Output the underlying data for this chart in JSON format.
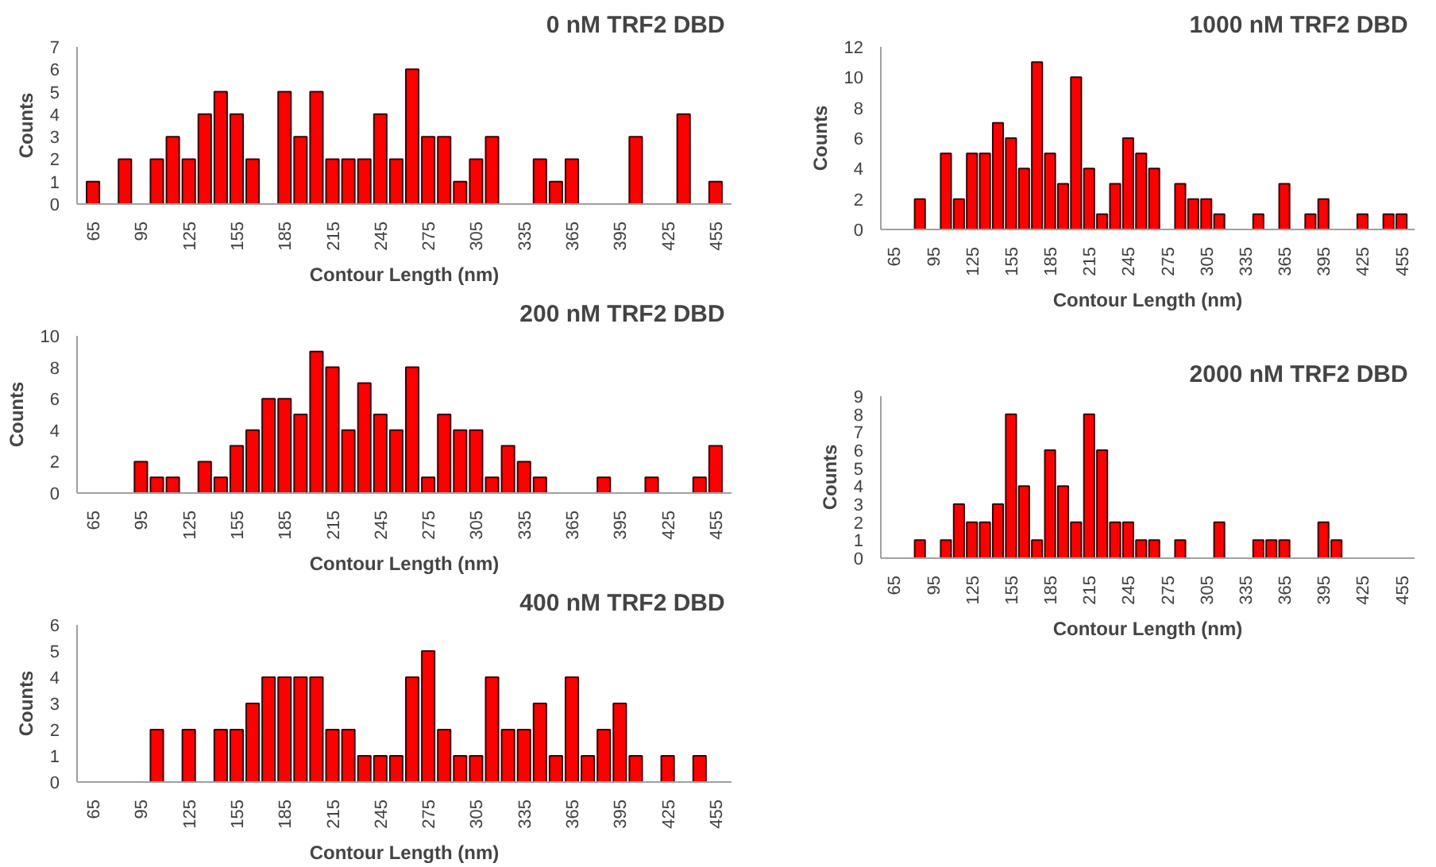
{
  "chart_data": [
    {
      "type": "bar",
      "title": "0  nM TRF2 DBD",
      "xlabel": "Contour Length (nm)",
      "ylabel": "Counts",
      "color": "#ff0000",
      "ylim": [
        0,
        7
      ],
      "yticks": [
        0,
        1,
        2,
        3,
        4,
        5,
        6,
        7
      ],
      "grid": false,
      "categories": [
        "65",
        null,
        null,
        "95",
        null,
        null,
        "125",
        null,
        null,
        "155",
        null,
        null,
        "185",
        null,
        null,
        "215",
        null,
        null,
        "245",
        null,
        null,
        "275",
        null,
        null,
        "305",
        null,
        null,
        "335",
        null,
        null,
        "365",
        null,
        null,
        "395",
        null,
        null,
        "425",
        null,
        null,
        "455"
      ],
      "values": [
        1,
        0,
        2,
        0,
        2,
        3,
        2,
        4,
        5,
        4,
        2,
        0,
        5,
        3,
        5,
        2,
        2,
        2,
        4,
        2,
        6,
        3,
        3,
        1,
        2,
        3,
        0,
        0,
        2,
        1,
        2,
        0,
        0,
        0,
        3,
        0,
        0,
        4,
        0,
        1
      ]
    },
    {
      "type": "bar",
      "title": "1000  nM TRF2 DBD",
      "xlabel": "Contour Length (nm)",
      "ylabel": "Counts",
      "color": "#ff0000",
      "ylim": [
        0,
        12
      ],
      "yticks": [
        0,
        2,
        4,
        6,
        8,
        10,
        12
      ],
      "grid": false,
      "categories": [
        "65",
        null,
        null,
        "95",
        null,
        null,
        "125",
        null,
        null,
        "155",
        null,
        null,
        "185",
        null,
        null,
        "215",
        null,
        null,
        "245",
        null,
        null,
        "275",
        null,
        null,
        "305",
        null,
        null,
        "335",
        null,
        null,
        "365",
        null,
        null,
        "395",
        null,
        null,
        "425",
        null,
        null,
        "455"
      ],
      "values": [
        0,
        0,
        2,
        0,
        5,
        2,
        5,
        5,
        7,
        6,
        4,
        11,
        5,
        3,
        10,
        4,
        1,
        3,
        6,
        5,
        4,
        0,
        3,
        2,
        2,
        1,
        0,
        0,
        1,
        0,
        3,
        0,
        1,
        2,
        0,
        0,
        1,
        0,
        1,
        1
      ]
    },
    {
      "type": "bar",
      "title": "200  nM TRF2 DBD",
      "xlabel": "Contour Length (nm)",
      "ylabel": "Counts",
      "color": "#ff0000",
      "ylim": [
        0,
        10
      ],
      "yticks": [
        0,
        2,
        4,
        6,
        8,
        10
      ],
      "grid": false,
      "categories": [
        "65",
        null,
        null,
        "95",
        null,
        null,
        "125",
        null,
        null,
        "155",
        null,
        null,
        "185",
        null,
        null,
        "215",
        null,
        null,
        "245",
        null,
        null,
        "275",
        null,
        null,
        "305",
        null,
        null,
        "335",
        null,
        null,
        "365",
        null,
        null,
        "395",
        null,
        null,
        "425",
        null,
        null,
        "455"
      ],
      "values": [
        0,
        0,
        0,
        2,
        1,
        1,
        0,
        2,
        1,
        3,
        4,
        6,
        6,
        5,
        9,
        8,
        4,
        7,
        5,
        4,
        8,
        1,
        5,
        4,
        4,
        1,
        3,
        2,
        1,
        0,
        0,
        0,
        1,
        0,
        0,
        1,
        0,
        0,
        1,
        3
      ]
    },
    {
      "type": "bar",
      "title": "2000  nM TRF2 DBD",
      "xlabel": "Contour Length (nm)",
      "ylabel": "Counts",
      "color": "#ff0000",
      "ylim": [
        0,
        9
      ],
      "yticks": [
        0,
        1,
        2,
        3,
        4,
        5,
        6,
        7,
        8,
        9
      ],
      "grid": false,
      "categories": [
        "65",
        null,
        null,
        "95",
        null,
        null,
        "125",
        null,
        null,
        "155",
        null,
        null,
        "185",
        null,
        null,
        "215",
        null,
        null,
        "245",
        null,
        null,
        "275",
        null,
        null,
        "305",
        null,
        null,
        "335",
        null,
        null,
        "365",
        null,
        null,
        "395",
        null,
        null,
        "425",
        null,
        null,
        "455"
      ],
      "values": [
        0,
        0,
        1,
        0,
        1,
        3,
        2,
        2,
        3,
        8,
        4,
        1,
        6,
        4,
        2,
        8,
        6,
        2,
        2,
        1,
        1,
        0,
        1,
        0,
        0,
        2,
        0,
        0,
        1,
        1,
        1,
        0,
        0,
        2,
        1,
        0,
        0,
        0,
        0,
        0
      ]
    },
    {
      "type": "bar",
      "title": "400  nM TRF2 DBD",
      "xlabel": "Contour Length (nm)",
      "ylabel": "Counts",
      "color": "#ff0000",
      "ylim": [
        0,
        6
      ],
      "yticks": [
        0,
        1,
        2,
        3,
        4,
        5,
        6
      ],
      "grid": false,
      "categories": [
        "65",
        null,
        null,
        "95",
        null,
        null,
        "125",
        null,
        null,
        "155",
        null,
        null,
        "185",
        null,
        null,
        "215",
        null,
        null,
        "245",
        null,
        null,
        "275",
        null,
        null,
        "305",
        null,
        null,
        "335",
        null,
        null,
        "365",
        null,
        null,
        "395",
        null,
        null,
        "425",
        null,
        null,
        "455"
      ],
      "values": [
        0,
        0,
        0,
        0,
        2,
        0,
        2,
        0,
        2,
        2,
        3,
        4,
        4,
        4,
        4,
        2,
        2,
        1,
        1,
        1,
        4,
        5,
        2,
        1,
        1,
        4,
        2,
        2,
        3,
        1,
        4,
        1,
        2,
        3,
        1,
        0,
        1,
        0,
        1,
        0
      ]
    }
  ]
}
